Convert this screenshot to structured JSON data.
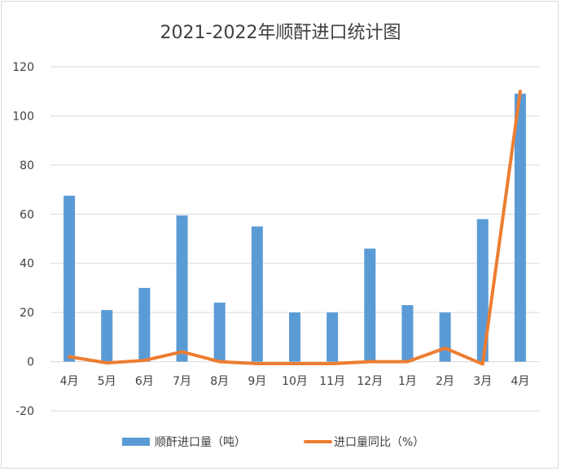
{
  "chart_data": {
    "type": "bar",
    "title": "2021-2022年顺酐进口统计图",
    "categories": [
      "4月",
      "5月",
      "6月",
      "7月",
      "8月",
      "9月",
      "10月",
      "11月",
      "12月",
      "1月",
      "2月",
      "3月",
      "4月"
    ],
    "ylim": [
      -20,
      120
    ],
    "yticks": [
      -20,
      0,
      20,
      40,
      60,
      80,
      100,
      120
    ],
    "grid": true,
    "legend_position": "bottom",
    "series": [
      {
        "name": "顺酐进口量（吨）",
        "type": "bar",
        "color": "#5b9bd5",
        "values": [
          67.5,
          21,
          30,
          59.5,
          24,
          55,
          20,
          20,
          46,
          23,
          20,
          58,
          109
        ]
      },
      {
        "name": "进口量同比（%）",
        "type": "line",
        "color": "#ed7d31",
        "values": [
          2,
          -0.5,
          0.5,
          4,
          0,
          -0.8,
          -0.8,
          -0.8,
          0,
          0,
          5.5,
          -1,
          110
        ]
      }
    ]
  }
}
